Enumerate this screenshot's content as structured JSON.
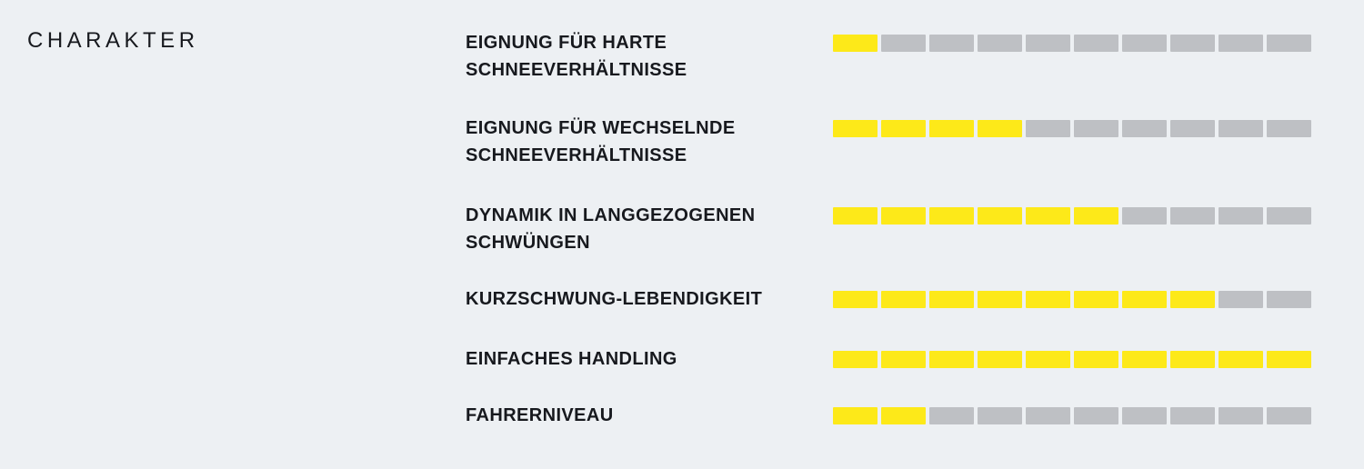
{
  "title": "CHARAKTER",
  "colors": {
    "background": "#EDF0F3",
    "text": "#17191E",
    "filled": "#FDE919",
    "empty": "#BEC0C4"
  },
  "scale_max": 10,
  "rows": [
    {
      "label": "EIGNUNG FÜR HARTE SCHNEEVERHÄLTNISSE",
      "value": 1
    },
    {
      "label": "EIGNUNG FÜR WECHSELNDE SCHNEEVERHÄLTNISSE",
      "value": 4
    },
    {
      "label": "DYNAMIK IN LANGGEZOGENEN SCHWÜNGEN",
      "value": 6
    },
    {
      "label": "KURZSCHWUNG-LEBENDIGKEIT",
      "value": 8
    },
    {
      "label": "EINFACHES HANDLING",
      "value": 10
    },
    {
      "label": "FAHRERNIVEAU",
      "value": 2
    }
  ],
  "chart_data": {
    "type": "bar",
    "title": "CHARAKTER",
    "categories": [
      "EIGNUNG FÜR HARTE SCHNEEVERHÄLTNISSE",
      "EIGNUNG FÜR WECHSELNDE SCHNEEVERHÄLTNISSE",
      "DYNAMIK IN LANGGEZOGENEN SCHWÜNGEN",
      "KURZSCHWUNG-LEBENDIGKEIT",
      "EINFACHES HANDLING",
      "FAHRERNIVEAU"
    ],
    "values": [
      1,
      4,
      6,
      8,
      10,
      2
    ],
    "xlabel": "",
    "ylabel": "",
    "ylim": [
      0,
      10
    ],
    "legend": false,
    "grid": false,
    "orientation": "horizontal-segmented"
  }
}
